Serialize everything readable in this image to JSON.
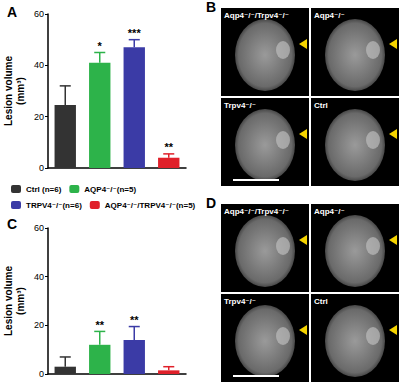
{
  "chart_data": [
    {
      "type": "bar",
      "title": "A",
      "y_label": "Lesion volume\n(mm³)",
      "categories": [
        "Ctrl (n=6)",
        "AQP4⁻/⁻(n=5)",
        "TRPV4⁻/⁻(n=6)",
        "AQP4⁻/⁻/TRPV4⁻/⁻(n=5)"
      ],
      "values": [
        24.5,
        41,
        47,
        4
      ],
      "errors": [
        7.5,
        4,
        3,
        1.5
      ],
      "significance": [
        null,
        "*",
        "***",
        "**"
      ],
      "colors": [
        "#333333",
        "#2db34a",
        "#3b3ba6",
        "#e0202a"
      ],
      "ylim": [
        0,
        60
      ],
      "yticks": [
        0,
        20,
        40,
        60
      ],
      "grid": false,
      "tick_labels": "y",
      "legend": "bottom"
    },
    {
      "type": "bar",
      "title": "C",
      "y_label": "Lesion volume\n(mm³)",
      "categories": [
        "Ctrl (n=6)",
        "AQP4⁻/⁻(n=5)",
        "TRPV4⁻/⁻(n=6)",
        "AQP4⁻/⁻/TRPV4⁻/⁻(n=5)"
      ],
      "values": [
        3,
        12,
        14,
        1.5
      ],
      "errors": [
        4,
        5.5,
        5.5,
        1.5
      ],
      "significance": [
        null,
        "**",
        "**",
        null
      ],
      "colors": [
        "#333333",
        "#2db34a",
        "#3b3ba6",
        "#e0202a"
      ],
      "ylim": [
        0,
        60
      ],
      "yticks": [
        0,
        20,
        40,
        60
      ],
      "grid": false,
      "tick_labels": "y",
      "legend": false
    }
  ],
  "image_panels": [
    {
      "title": "B",
      "images": [
        "Aqp4⁻/⁻/Trpv4⁻/⁻",
        "Aqp4⁻/⁻",
        "Trpv4⁻/⁻",
        "Ctrl"
      ]
    },
    {
      "title": "D",
      "images": [
        "Aqp4⁻/⁻/Trpv4⁻/⁻",
        "Aqp4⁻/⁻",
        "Trpv4⁻/⁻",
        "Ctrl"
      ]
    }
  ]
}
